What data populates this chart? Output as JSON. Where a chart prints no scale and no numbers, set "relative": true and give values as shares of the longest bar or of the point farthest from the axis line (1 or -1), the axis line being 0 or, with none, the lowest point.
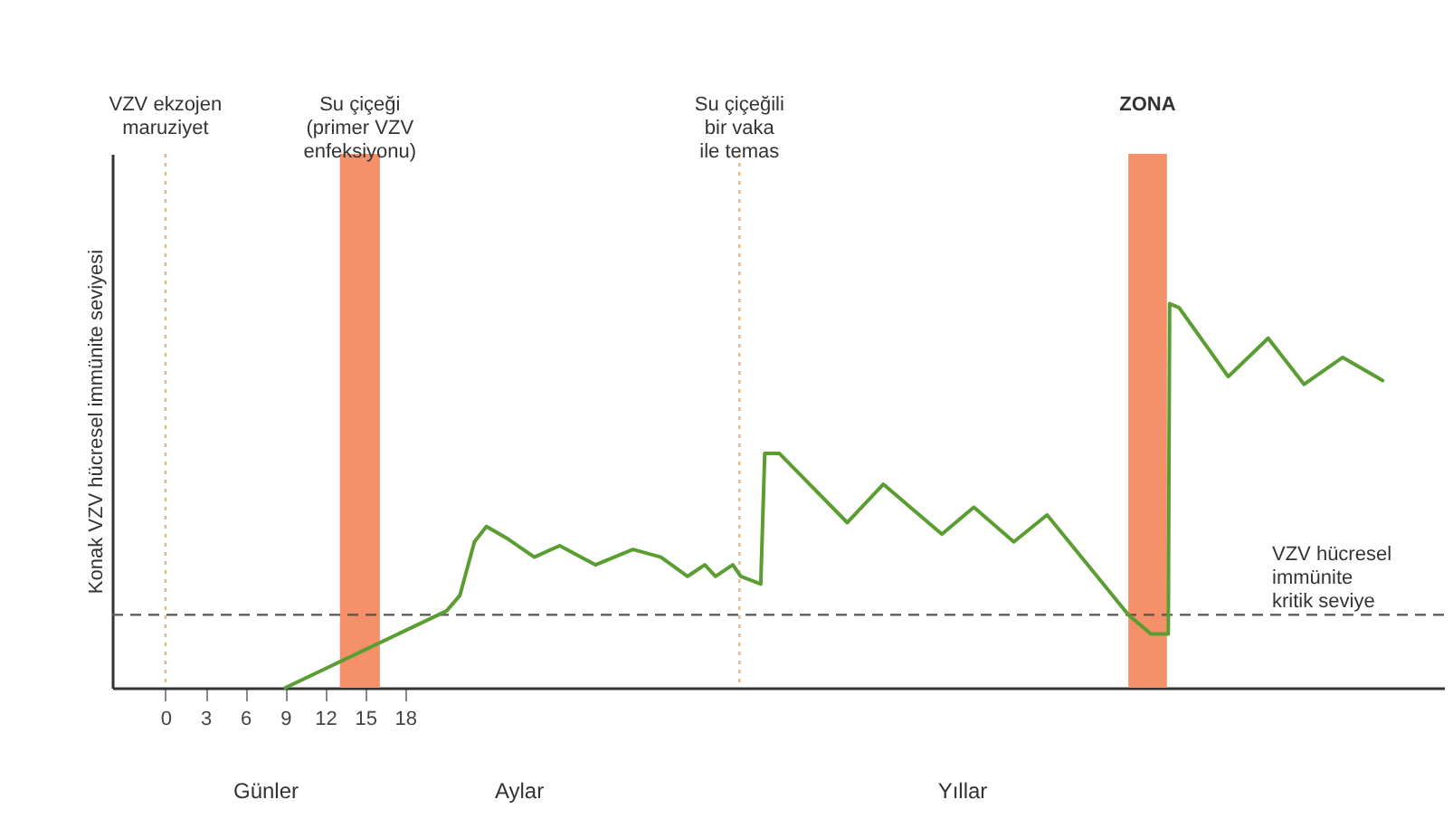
{
  "chart_data": {
    "type": "line",
    "relative": true,
    "ylabel": "Konak VZV hücresel immünite seviyesi",
    "x": [
      9,
      21.1,
      22.1,
      23.2,
      24.1,
      25.6,
      27.7,
      29.6,
      32.3,
      35.1,
      37.2,
      39.2,
      40.5,
      41.3,
      42.6,
      43.2,
      44.7,
      45.0,
      46.1,
      51.2,
      53.9,
      58.3,
      60.7,
      63.7,
      66.2,
      72.3,
      74.0,
      75.3,
      75.4,
      76.1,
      79.8,
      82.8,
      85.5,
      88.4,
      91.4
    ],
    "series": [
      {
        "color": "#5a9e32",
        "values": [
          0,
          0.2,
          0.24,
          0.38,
          0.42,
          0.39,
          0.34,
          0.37,
          0.32,
          0.36,
          0.34,
          0.29,
          0.32,
          0.29,
          0.32,
          0.29,
          0.27,
          0.61,
          0.61,
          0.43,
          0.53,
          0.4,
          0.47,
          0.38,
          0.45,
          0.19,
          0.14,
          0.14,
          1.0,
          0.99,
          0.81,
          0.91,
          0.79,
          0.86,
          0.8
        ]
      }
    ],
    "xlim": [
      -4,
      96
    ],
    "xticks": [
      0,
      3,
      6,
      9,
      12,
      15,
      18
    ],
    "grid": false,
    "bands": [
      {
        "axis": "x",
        "from": 13.1,
        "to": 16.1,
        "label": "Su çiçeği\n(primer VZV\nenfeksiyonu)",
        "color": "#f4916b"
      },
      {
        "axis": "x",
        "from": 72.3,
        "to": 75.2,
        "label": "ZONA",
        "color": "#f4916b"
      }
    ],
    "ref_lines": [
      {
        "axis": "x",
        "value": 0,
        "label": "VZV ekzojen\nmaruziyet",
        "line_style": "dotted",
        "color": "#dcb98a"
      },
      {
        "axis": "x",
        "value": 43.1,
        "label": "Su çiçeğili\nbir vaka\nile temas",
        "line_style": "dotted",
        "color": "#dcb98a"
      },
      {
        "axis": "y",
        "value": 0.19,
        "label": "VZV hücresel\nimmünite\nkritik seviye",
        "line_style": "dashed",
        "color": "#555555"
      }
    ],
    "annotations": [
      "Günler",
      "Aylar",
      "Yıllar"
    ]
  }
}
